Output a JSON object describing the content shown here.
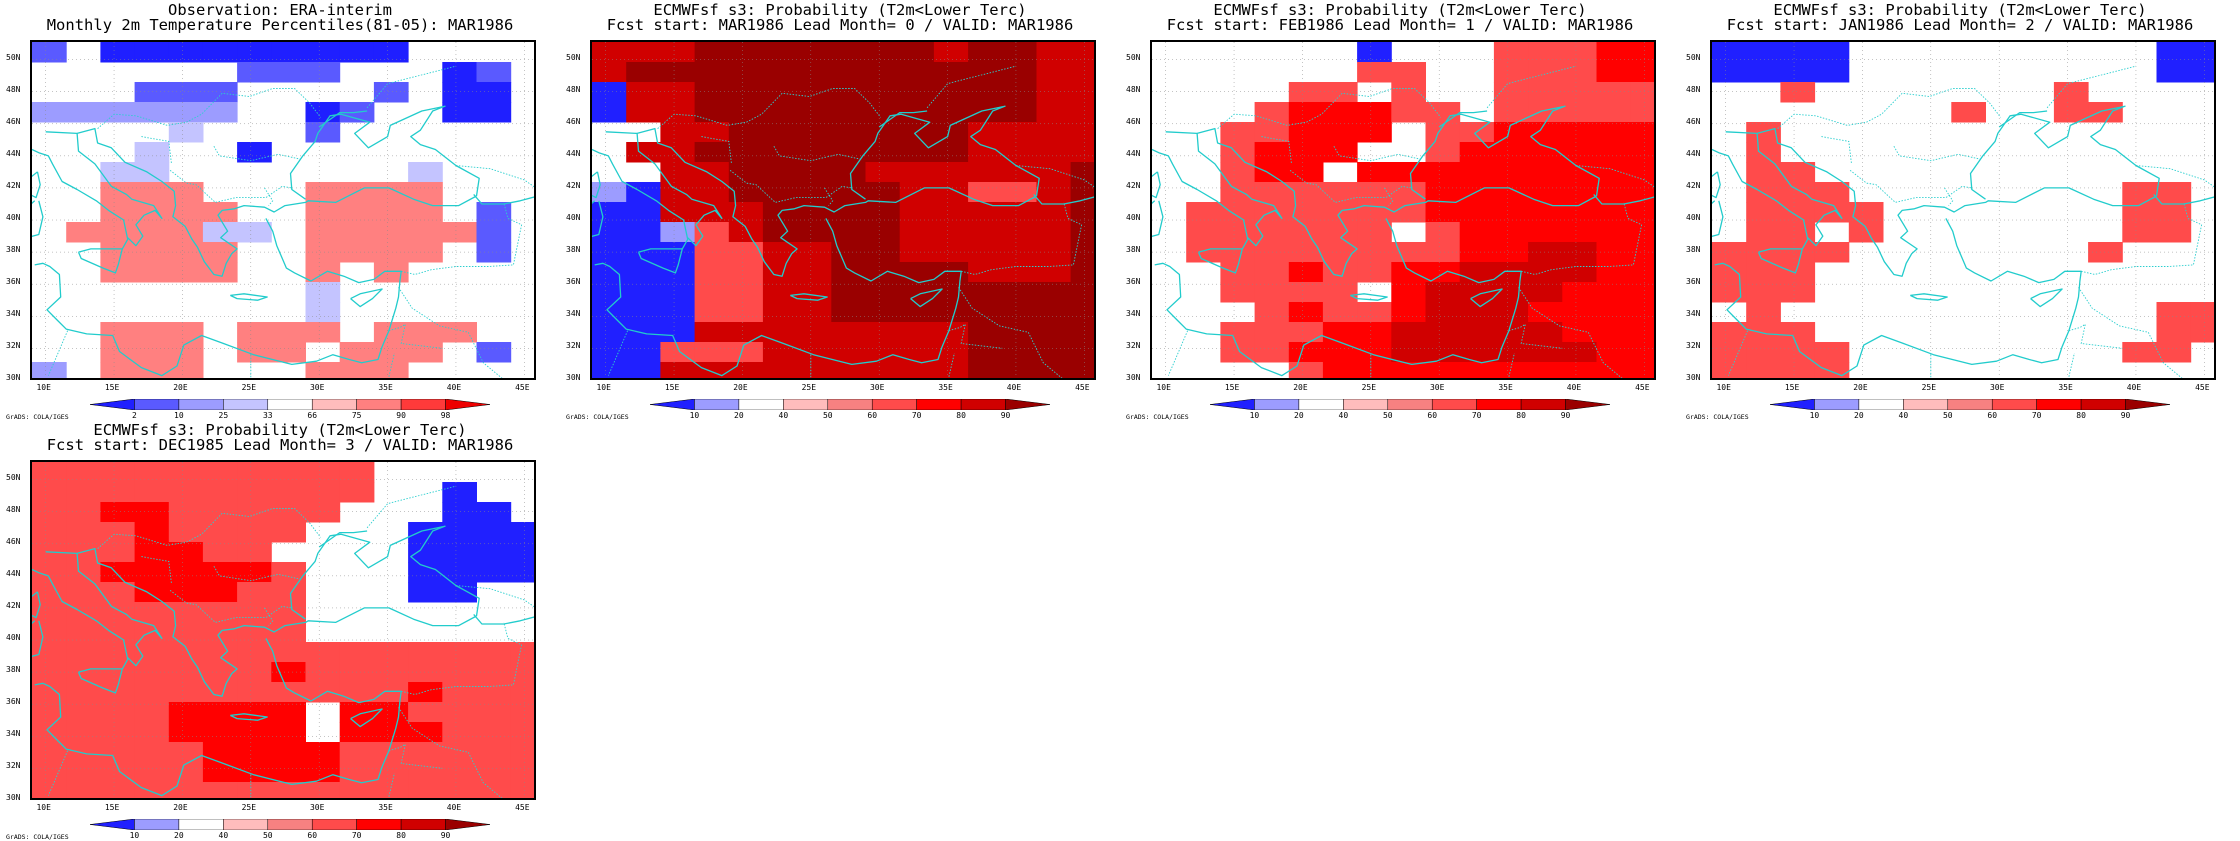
{
  "figure": {
    "grads_credit": "GrADS: COLA/IGES",
    "lat_ticks": [
      "50N",
      "48N",
      "46N",
      "44N",
      "42N",
      "40N",
      "38N",
      "36N",
      "34N",
      "32N",
      "30N"
    ],
    "lon_ticks": [
      "10E",
      "15E",
      "20E",
      "25E",
      "30E",
      "35E",
      "40E",
      "45E"
    ]
  },
  "legends": {
    "observation": {
      "labels": [
        "2",
        "10",
        "25",
        "33",
        "66",
        "75",
        "90",
        "98"
      ],
      "colors": [
        "#1f1fff",
        "#5a5aff",
        "#9c9cff",
        "#c4c4ff",
        "#ffffff",
        "#ffbcbc",
        "#ff8080",
        "#ff3a3a",
        "#ee0000"
      ]
    },
    "probability": {
      "labels": [
        "10",
        "20",
        "40",
        "50",
        "60",
        "70",
        "80",
        "90"
      ],
      "colors": [
        "#2020ff",
        "#9c9cff",
        "#ffffff",
        "#ffbcbc",
        "#f78181",
        "#ff4b4b",
        "#ff0000",
        "#d00000",
        "#9a0000"
      ]
    }
  },
  "chart_data": [
    {
      "type": "heatmap",
      "title": "Observation: ERA-interim",
      "subtitle": "Monthly 2m Temperature Percentiles(81-05): MAR1986",
      "legend": "observation",
      "lon_range": [
        9,
        46
      ],
      "lat_range": [
        29.9,
        51.1
      ],
      "cell_size_deg": 2.5,
      "grid": [
        "B.AAAAAAAAA....",
        "......BBB...AB.",
        "...BBB....B.AA.",
        "CCCCCC..AB..AA.",
        "....D...B......",
        "...D..A........",
        "..DD.......D...",
        "..EEE...EEEE...",
        "..EEEE..EEEE.B.",
        ".EEEEDD.EEEEEB.",
        "..EEEE..EEEE.B.",
        "..EEEE..E.E....",
        "........D......",
        "........D......",
        "..EEE.EEE.EEE..",
        "..EEE.EE.EEE.B.",
        "C.EEE...EEE...."
      ]
    },
    {
      "type": "heatmap",
      "title": "ECMWFsf s3: Probability (T2m<Lower Terc)",
      "subtitle": "Fcst start: MAR1986  Lead Month= 0 / VALID: MAR1986",
      "legend": "probability",
      "lon_range": [
        9,
        46
      ],
      "lat_range": [
        29.9,
        51.1
      ],
      "cell_size_deg": 2.5,
      "grid": [
        "PPPRRRRRRRPRRPP",
        "PRRRRRRRRRRRRPP",
        "APQRRRRRRRRRRPP",
        "APQRRRRRRRRRRPP",
        "..QQRRRRRRRPPPP",
        ".QQRRRRRRRRPPPP",
        "..QQRRRRPPPPPPR",
        "BAQQRRRRRPPNNPR",
        "AAQQQRRRRPPPPPR",
        "AABNQRRRRQQPPPR",
        "AAANNPPRRQQPPPR",
        "AAANNPPRRRRPPPR",
        "AAANNPPRRRRRRRR",
        "AAANNPPRRRRRRRR",
        "AAAPPPQQQQQRRRR",
        "AANNNPQQQQQRRRR",
        "AAQQQPPQQQQRRRR"
      ]
    },
    {
      "type": "heatmap",
      "title": "ECMWFsf s3: Probability (T2m<Lower Terc)",
      "subtitle": "Fcst start: FEB1986  Lead Month= 1 / VALID: MAR1986",
      "legend": "probability",
      "lon_range": [
        9,
        46
      ],
      "lat_range": [
        29.9,
        51.1
      ],
      "cell_size_deg": 2.5,
      "grid": [
        "......A...NNNOO",
        "......NN..NNNOO",
        "....NN.N..NNNNN",
        "...NOOONN.NNNNN",
        "..NNOOO.NNOOOOO",
        "..NOOO..NOOOOOO",
        "..NOO.OOOOOOOOO",
        "..NNNNNNOOOOOOO",
        ".NNNNNNNOOOOOOO",
        ".NNNNNN.NOOOOOO",
        ".NNNNNNNNOOPPOO",
        "..NNONNOOPPPPOO",
        "..NNNN.OPPPPOOO",
        "...NONNOPPPOOOO",
        "..NNNOOPPPPPOOO",
        "..NNOOOPPPPPPOO",
        "....NOOOOOOOOOO"
      ]
    },
    {
      "type": "heatmap",
      "title": "ECMWFsf s3: Probability (T2m<Lower Terc)",
      "subtitle": "Fcst start: JAN1986  Lead Month= 2 / VALID: MAR1986",
      "legend": "probability",
      "lon_range": [
        9,
        46
      ],
      "lat_range": [
        29.9,
        51.1
      ],
      "cell_size_deg": 2.5,
      "grid": [
        "AAAA.........AA",
        "AAAA.........AA",
        "..N.......N....",
        ".......N..NN...",
        ".N.............",
        ".N.............",
        ".NN............",
        ".NNN........NN.",
        ".NNNN.......NN.",
        ".NN.N.......NN.",
        "NNNN.......N...",
        "NNN............",
        "NNN............",
        ".N...........NN",
        "NNN..........NN",
        "NNNN........NN.",
        "NNNN..........."
      ]
    },
    {
      "type": "heatmap",
      "title": "ECMWFsf s3: Probability (T2m<Lower Terc)",
      "subtitle": "Fcst start: DEC1985  Lead Month= 3 / VALID: MAR1986",
      "legend": "probability",
      "lon_range": [
        9,
        46
      ],
      "lat_range": [
        29.9,
        51.1
      ],
      "cell_size_deg": 2.5,
      "grid": [
        "NNNNNNNNNN.....",
        "NNNNNNNNNN..A..",
        "NNOONNNNN...AA.",
        "NNNONNNN...AAAA",
        "NNNOONN....AAAA",
        "NNOOOOON...AAAA",
        "NNNOOONN...AA..",
        "NNNNNNNN.......",
        "NNNNNNNN.......",
        "NNNNNNNNNNNNNNN",
        "NNNNNNNONNNNNNN",
        "NNNNNNNNNNNONNN",
        "NNNNOOOO.OONNNN",
        "NNNNOOOO.OOONNN",
        "NNNNNOOOONNNNNN",
        "NNNNNOOOONNNNNN",
        "NNNNNNNNNNNNNNN"
      ]
    }
  ]
}
